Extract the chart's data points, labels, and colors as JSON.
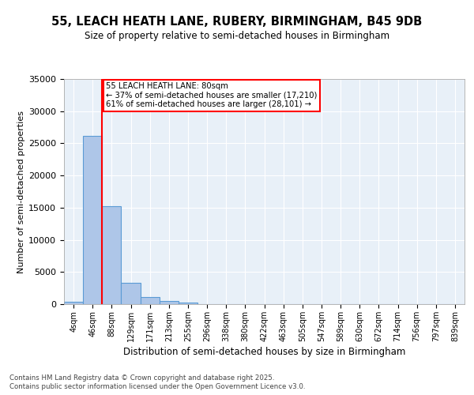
{
  "title_line1": "55, LEACH HEATH LANE, RUBERY, BIRMINGHAM, B45 9DB",
  "title_line2": "Size of property relative to semi-detached houses in Birmingham",
  "xlabel": "Distribution of semi-detached houses by size in Birmingham",
  "ylabel": "Number of semi-detached properties",
  "footer_line1": "Contains HM Land Registry data © Crown copyright and database right 2025.",
  "footer_line2": "Contains public sector information licensed under the Open Government Licence v3.0.",
  "bin_labels": [
    "4sqm",
    "46sqm",
    "88sqm",
    "129sqm",
    "171sqm",
    "213sqm",
    "255sqm",
    "296sqm",
    "338sqm",
    "380sqm",
    "422sqm",
    "463sqm",
    "505sqm",
    "547sqm",
    "589sqm",
    "630sqm",
    "672sqm",
    "714sqm",
    "756sqm",
    "797sqm",
    "839sqm"
  ],
  "bar_values": [
    370,
    26100,
    15200,
    3350,
    1050,
    480,
    210,
    0,
    0,
    0,
    0,
    0,
    0,
    0,
    0,
    0,
    0,
    0,
    0,
    0,
    0
  ],
  "bar_color": "#aec6e8",
  "bar_edge_color": "#5a9bd5",
  "ylim": [
    0,
    35000
  ],
  "yticks": [
    0,
    5000,
    10000,
    15000,
    20000,
    25000,
    30000,
    35000
  ],
  "property_bin_index": 1,
  "annotation_text": "55 LEACH HEATH LANE: 80sqm\n← 37% of semi-detached houses are smaller (17,210)\n61% of semi-detached houses are larger (28,101) →",
  "annotation_box_color": "white",
  "annotation_box_edge_color": "red",
  "red_line_color": "red",
  "background_color": "#e8f0f8",
  "grid_color": "white"
}
